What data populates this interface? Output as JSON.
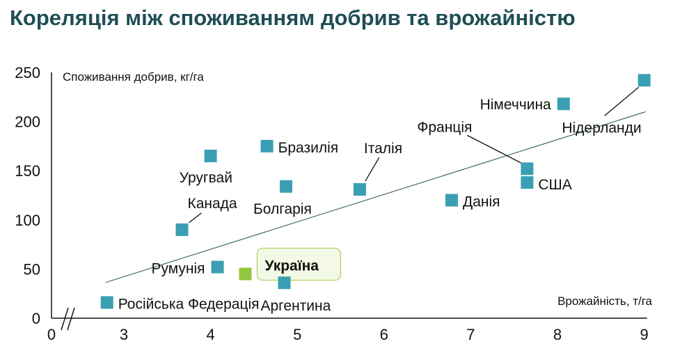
{
  "title": "Кореляція між споживанням добрив та врожайністю",
  "chart_data": {
    "type": "scatter",
    "title": "Кореляція між споживанням добрив та врожайністю",
    "xlabel": "Врожайність, т/га",
    "ylabel": "Споживання добрив, кг/га",
    "xlim": [
      0,
      9
    ],
    "ylim": [
      0,
      250
    ],
    "x_axis_break": true,
    "x_ticks": [
      "0",
      "3",
      "4",
      "5",
      "6",
      "7",
      "8",
      "9"
    ],
    "y_ticks": [
      "0",
      "50",
      "100",
      "150",
      "200",
      "250"
    ],
    "point_color": "#3a9fb4",
    "highlight_color": "#92c83e",
    "callout_fill": "#f3f9e6",
    "callout_border": "#a8cf5b",
    "trendline": {
      "x": [
        2.3,
        9
      ],
      "y": [
        42,
        210
      ]
    },
    "points": [
      {
        "label": "Російська Федерація",
        "x": 2.3,
        "y": 16
      },
      {
        "label": "Румунія",
        "x": 4.08,
        "y": 52
      },
      {
        "label": "Україна",
        "x": 4.4,
        "y": 45,
        "highlight": true
      },
      {
        "label": "Аргентина",
        "x": 4.85,
        "y": 36
      },
      {
        "label": "Канада",
        "x": 3.67,
        "y": 90
      },
      {
        "label": "Уругвай",
        "x": 4.0,
        "y": 165
      },
      {
        "label": "Бразилія",
        "x": 4.65,
        "y": 175
      },
      {
        "label": "Болгарія",
        "x": 4.87,
        "y": 134
      },
      {
        "label": "Італія",
        "x": 5.72,
        "y": 131
      },
      {
        "label": "Данія",
        "x": 6.78,
        "y": 120
      },
      {
        "label": "Франція",
        "x": 7.65,
        "y": 152
      },
      {
        "label": "США",
        "x": 7.65,
        "y": 138
      },
      {
        "label": "Німеччина",
        "x": 8.07,
        "y": 218
      },
      {
        "label": "Нідерланди",
        "x": 9.0,
        "y": 242
      }
    ]
  }
}
